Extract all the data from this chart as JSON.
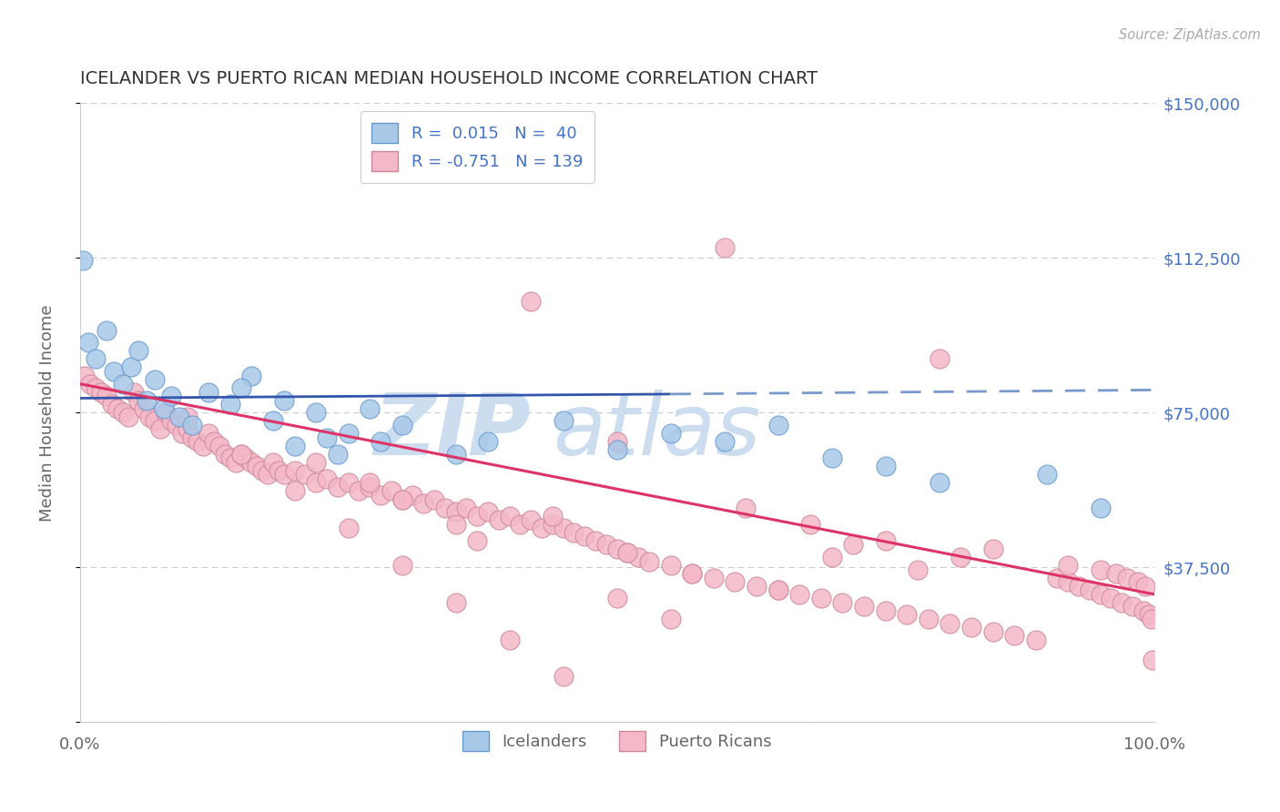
{
  "title": "ICELANDER VS PUERTO RICAN MEDIAN HOUSEHOLD INCOME CORRELATION CHART",
  "source": "Source: ZipAtlas.com",
  "ylabel": "Median Household Income",
  "icelander_color": "#a8c8e8",
  "icelander_edge": "#6699cc",
  "puerto_rican_color": "#f4b8c8",
  "puerto_rican_edge": "#cc8899",
  "trend_blue": "#3355aa",
  "trend_blue_dash": "#7799cc",
  "trend_pink": "#dd3366",
  "background": "#ffffff",
  "grid_color": "#cccccc",
  "title_color": "#333333",
  "right_axis_color": "#4472c4",
  "watermark_color": "#ccddf0",
  "legend_text_color": "#4472c4",
  "bottom_label_color": "#666666",
  "ytick_labels": [
    "",
    "$37,500",
    "$75,000",
    "$112,500",
    "$150,000"
  ],
  "xlim": [
    0,
    100
  ],
  "ylim": [
    0,
    150000
  ],
  "R_ice": 0.015,
  "N_ice": 40,
  "R_pr": -0.751,
  "N_pr": 139,
  "ice_x": [
    0.3,
    0.8,
    1.5,
    2.5,
    3.2,
    4.0,
    4.8,
    5.5,
    6.2,
    7.0,
    7.8,
    8.5,
    9.3,
    10.5,
    12.0,
    14.0,
    16.0,
    18.0,
    20.0,
    22.0,
    25.0,
    28.0,
    19.0,
    24.0,
    30.0,
    27.0,
    15.0,
    23.0,
    35.0,
    38.0,
    45.0,
    50.0,
    55.0,
    60.0,
    65.0,
    70.0,
    75.0,
    80.0,
    90.0,
    95.0
  ],
  "ice_y": [
    112000,
    92000,
    88000,
    95000,
    85000,
    82000,
    86000,
    90000,
    78000,
    83000,
    76000,
    79000,
    74000,
    72000,
    80000,
    77000,
    84000,
    73000,
    67000,
    75000,
    70000,
    68000,
    78000,
    65000,
    72000,
    76000,
    81000,
    69000,
    65000,
    68000,
    73000,
    66000,
    70000,
    68000,
    72000,
    64000,
    62000,
    58000,
    60000,
    52000
  ],
  "pr_x": [
    0.5,
    1.0,
    1.5,
    2.0,
    2.5,
    3.0,
    3.5,
    4.0,
    4.5,
    5.0,
    5.5,
    6.0,
    6.5,
    7.0,
    7.5,
    8.0,
    8.5,
    9.0,
    9.5,
    10.0,
    10.5,
    11.0,
    11.5,
    12.0,
    12.5,
    13.0,
    13.5,
    14.0,
    14.5,
    15.0,
    15.5,
    16.0,
    16.5,
    17.0,
    17.5,
    18.0,
    18.5,
    19.0,
    20.0,
    21.0,
    22.0,
    23.0,
    24.0,
    25.0,
    26.0,
    27.0,
    28.0,
    29.0,
    30.0,
    31.0,
    32.0,
    33.0,
    34.0,
    35.0,
    36.0,
    37.0,
    38.0,
    39.0,
    40.0,
    41.0,
    42.0,
    43.0,
    44.0,
    45.0,
    46.0,
    47.0,
    48.0,
    49.0,
    50.0,
    51.0,
    52.0,
    53.0,
    55.0,
    57.0,
    59.0,
    61.0,
    63.0,
    65.0,
    67.0,
    69.0,
    71.0,
    73.0,
    75.0,
    77.0,
    79.0,
    81.0,
    83.0,
    85.0,
    87.0,
    89.0,
    91.0,
    92.0,
    93.0,
    94.0,
    95.0,
    96.0,
    97.0,
    98.0,
    99.0,
    99.5,
    99.8,
    99.9,
    27.0,
    35.0,
    42.0,
    50.0,
    60.0,
    70.0,
    80.0,
    22.0,
    30.0,
    37.0,
    44.0,
    51.0,
    57.0,
    65.0,
    72.0,
    78.0,
    85.0,
    92.0,
    95.0,
    96.5,
    97.5,
    98.5,
    99.2,
    10.0,
    15.0,
    20.0,
    25.0,
    30.0,
    35.0,
    40.0,
    45.0,
    50.0,
    55.0,
    62.0,
    68.0,
    75.0,
    82.0
  ],
  "pr_y": [
    84000,
    82000,
    81000,
    80000,
    79000,
    77000,
    76000,
    75000,
    74000,
    80000,
    78000,
    76000,
    74000,
    73000,
    71000,
    75000,
    73000,
    72000,
    70000,
    71000,
    69000,
    68000,
    67000,
    70000,
    68000,
    67000,
    65000,
    64000,
    63000,
    65000,
    64000,
    63000,
    62000,
    61000,
    60000,
    63000,
    61000,
    60000,
    61000,
    60000,
    58000,
    59000,
    57000,
    58000,
    56000,
    57000,
    55000,
    56000,
    54000,
    55000,
    53000,
    54000,
    52000,
    51000,
    52000,
    50000,
    51000,
    49000,
    50000,
    48000,
    49000,
    47000,
    48000,
    47000,
    46000,
    45000,
    44000,
    43000,
    42000,
    41000,
    40000,
    39000,
    38000,
    36000,
    35000,
    34000,
    33000,
    32000,
    31000,
    30000,
    29000,
    28000,
    27000,
    26000,
    25000,
    24000,
    23000,
    22000,
    21000,
    20000,
    35000,
    34000,
    33000,
    32000,
    31000,
    30000,
    29000,
    28000,
    27000,
    26000,
    25000,
    15000,
    58000,
    48000,
    102000,
    68000,
    115000,
    40000,
    88000,
    63000,
    54000,
    44000,
    50000,
    41000,
    36000,
    32000,
    43000,
    37000,
    42000,
    38000,
    37000,
    36000,
    35000,
    34000,
    33000,
    74000,
    65000,
    56000,
    47000,
    38000,
    29000,
    20000,
    11000,
    30000,
    25000,
    52000,
    48000,
    44000,
    40000
  ]
}
